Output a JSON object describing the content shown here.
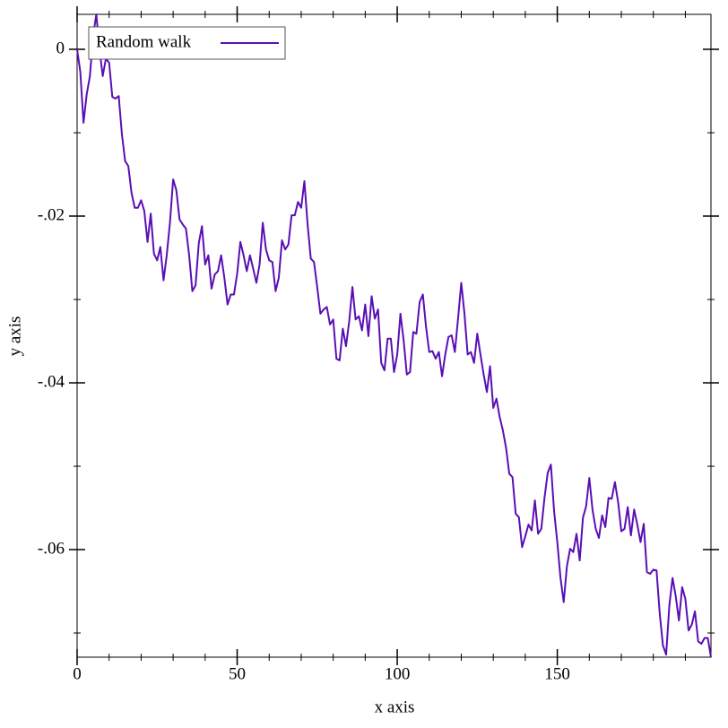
{
  "chart_data": {
    "type": "line",
    "x_label": "x axis",
    "y_label": "y axis",
    "x": [
      0,
      1,
      2,
      3,
      4,
      5,
      6,
      7,
      8,
      9,
      10,
      11,
      12,
      13,
      14,
      15,
      16,
      17,
      18,
      19,
      20,
      21,
      22,
      23,
      24,
      25,
      26,
      27,
      28,
      29,
      30,
      31,
      32,
      33,
      34,
      35,
      36,
      37,
      38,
      39,
      40,
      41,
      42,
      43,
      44,
      45,
      46,
      47,
      48,
      49,
      50,
      51,
      52,
      53,
      54,
      55,
      56,
      57,
      58,
      59,
      60,
      61,
      62,
      63,
      64,
      65,
      66,
      67,
      68,
      69,
      70,
      71,
      72,
      73,
      74,
      75,
      76,
      77,
      78,
      79,
      80,
      81,
      82,
      83,
      84,
      85,
      86,
      87,
      88,
      89,
      90,
      91,
      92,
      93,
      94,
      95,
      96,
      97,
      98,
      99,
      100,
      101,
      102,
      103,
      104,
      105,
      106,
      107,
      108,
      109,
      110,
      111,
      112,
      113,
      114,
      115,
      116,
      117,
      118,
      119,
      120,
      121,
      122,
      123,
      124,
      125,
      126,
      127,
      128,
      129,
      130,
      131,
      132,
      133,
      134,
      135,
      136,
      137,
      138,
      139,
      140,
      141,
      142,
      143,
      144,
      145,
      146,
      147,
      148,
      149,
      150,
      151,
      152,
      153,
      154,
      155,
      156,
      157,
      158,
      159,
      160,
      161,
      162,
      163,
      164,
      165,
      166,
      167,
      168,
      169,
      170,
      171,
      172,
      173,
      174,
      175,
      176,
      177,
      178,
      179,
      180,
      181,
      182,
      183,
      184,
      185,
      186,
      187,
      188,
      189,
      190,
      191,
      192,
      193,
      194,
      195,
      196,
      197,
      198
    ],
    "series": [
      {
        "name": "Random walk",
        "color": "#5a0fb4",
        "values": [
          0,
          -0.0027,
          -0.0088,
          -0.0054,
          -0.0032,
          0.0016,
          0.0042,
          0,
          -0.0032,
          -0.0011,
          -0.0016,
          -0.0057,
          -0.0059,
          -0.0056,
          -0.0102,
          -0.0134,
          -0.014,
          -0.0172,
          -0.019,
          -0.019,
          -0.0181,
          -0.0194,
          -0.0231,
          -0.0197,
          -0.0245,
          -0.0253,
          -0.0237,
          -0.0277,
          -0.0247,
          -0.0208,
          -0.0156,
          -0.0169,
          -0.0204,
          -0.021,
          -0.0215,
          -0.0247,
          -0.029,
          -0.0283,
          -0.0233,
          -0.0212,
          -0.0258,
          -0.0247,
          -0.0287,
          -0.027,
          -0.0266,
          -0.0247,
          -0.0274,
          -0.0306,
          -0.0294,
          -0.0294,
          -0.0269,
          -0.0231,
          -0.0247,
          -0.0266,
          -0.0247,
          -0.0263,
          -0.028,
          -0.0258,
          -0.0208,
          -0.024,
          -0.0253,
          -0.0255,
          -0.029,
          -0.0274,
          -0.0229,
          -0.024,
          -0.0234,
          -0.0199,
          -0.0199,
          -0.0183,
          -0.019,
          -0.0158,
          -0.021,
          -0.0251,
          -0.0255,
          -0.0285,
          -0.0317,
          -0.0312,
          -0.0309,
          -0.033,
          -0.0324,
          -0.0371,
          -0.0373,
          -0.0335,
          -0.0356,
          -0.0326,
          -0.0285,
          -0.0324,
          -0.032,
          -0.0337,
          -0.0306,
          -0.0344,
          -0.0296,
          -0.0323,
          -0.0312,
          -0.0376,
          -0.0385,
          -0.0347,
          -0.0347,
          -0.0387,
          -0.0366,
          -0.0317,
          -0.0349,
          -0.039,
          -0.0387,
          -0.0339,
          -0.0341,
          -0.0303,
          -0.0294,
          -0.0333,
          -0.0363,
          -0.0362,
          -0.0371,
          -0.0363,
          -0.0392,
          -0.0366,
          -0.0345,
          -0.0343,
          -0.0363,
          -0.0323,
          -0.028,
          -0.0317,
          -0.0366,
          -0.0363,
          -0.0376,
          -0.0341,
          -0.0366,
          -0.039,
          -0.0411,
          -0.038,
          -0.043,
          -0.0419,
          -0.0441,
          -0.0457,
          -0.0478,
          -0.0509,
          -0.0513,
          -0.0557,
          -0.0561,
          -0.0597,
          -0.0584,
          -0.057,
          -0.0577,
          -0.0541,
          -0.0581,
          -0.0575,
          -0.0538,
          -0.0508,
          -0.0498,
          -0.0554,
          -0.0591,
          -0.0634,
          -0.0663,
          -0.062,
          -0.0599,
          -0.0603,
          -0.0581,
          -0.0613,
          -0.0562,
          -0.0548,
          -0.0514,
          -0.0552,
          -0.0575,
          -0.0586,
          -0.0559,
          -0.0573,
          -0.0538,
          -0.0539,
          -0.0519,
          -0.0543,
          -0.0578,
          -0.0575,
          -0.0549,
          -0.0583,
          -0.0552,
          -0.057,
          -0.0591,
          -0.0569,
          -0.0627,
          -0.0629,
          -0.0624,
          -0.0625,
          -0.0677,
          -0.0715,
          -0.0726,
          -0.0667,
          -0.0634,
          -0.0656,
          -0.0685,
          -0.0645,
          -0.0659,
          -0.0697,
          -0.069,
          -0.0674,
          -0.071,
          -0.0713,
          -0.0706,
          -0.0706,
          -0.0729
        ]
      }
    ],
    "xlim": [
      0,
      198
    ],
    "ylim": [
      -0.0729,
      0.0042
    ],
    "xticks": [
      0,
      50,
      100,
      150
    ],
    "yticks": [
      0,
      {
        "value": -0.02,
        "label": "-.02"
      },
      {
        "value": -0.04,
        "label": "-.04"
      },
      {
        "value": -0.06,
        "label": "-.06"
      }
    ],
    "xminorticks": [
      10,
      20,
      30,
      40,
      60,
      70,
      80,
      90,
      110,
      120,
      130,
      140,
      160,
      170,
      180,
      190
    ],
    "yminorticks": [
      -0.01,
      -0.03,
      -0.05,
      -0.07
    ],
    "legend": "top-left"
  }
}
